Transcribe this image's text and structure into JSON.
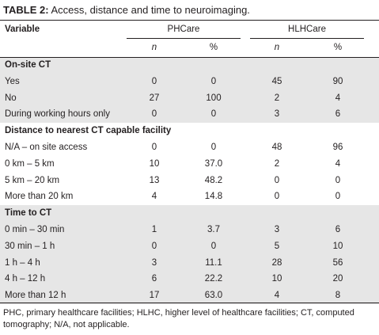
{
  "title": {
    "label": "TABLE 2:",
    "text": "Access, distance and time to neuroimaging."
  },
  "table": {
    "header": {
      "variable": "Variable",
      "groups": [
        "PHCare",
        "HLHCare"
      ],
      "columns": [
        "n",
        "%",
        "n",
        "%"
      ]
    },
    "sections": [
      {
        "title": "On-site CT",
        "rows": [
          [
            "Yes",
            "0",
            "0",
            "45",
            "90"
          ],
          [
            "No",
            "27",
            "100",
            "2",
            "4"
          ],
          [
            "During working hours only",
            "0",
            "0",
            "3",
            "6"
          ]
        ]
      },
      {
        "title": "Distance to nearest CT capable facility",
        "rows": [
          [
            "N/A – on site access",
            "0",
            "0",
            "48",
            "96"
          ],
          [
            "0 km – 5 km",
            "10",
            "37.0",
            "2",
            "4"
          ],
          [
            "5 km – 20 km",
            "13",
            "48.2",
            "0",
            "0"
          ],
          [
            "More than 20 km",
            "4",
            "14.8",
            "0",
            "0"
          ]
        ]
      },
      {
        "title": "Time to CT",
        "rows": [
          [
            "0 min – 30 min",
            "1",
            "3.7",
            "3",
            "6"
          ],
          [
            "30 min – 1 h",
            "0",
            "0",
            "5",
            "10"
          ],
          [
            "1 h – 4 h",
            "3",
            "11.1",
            "28",
            "56"
          ],
          [
            "4 h – 12 h",
            "6",
            "22.2",
            "10",
            "20"
          ],
          [
            "More than 12 h",
            "17",
            "63.0",
            "4",
            "8"
          ]
        ]
      }
    ]
  },
  "footnote": "PHC, primary healthcare facilities; HLHC, higher level of healthcare facilities; CT, computed tomography; N/A, not applicable."
}
